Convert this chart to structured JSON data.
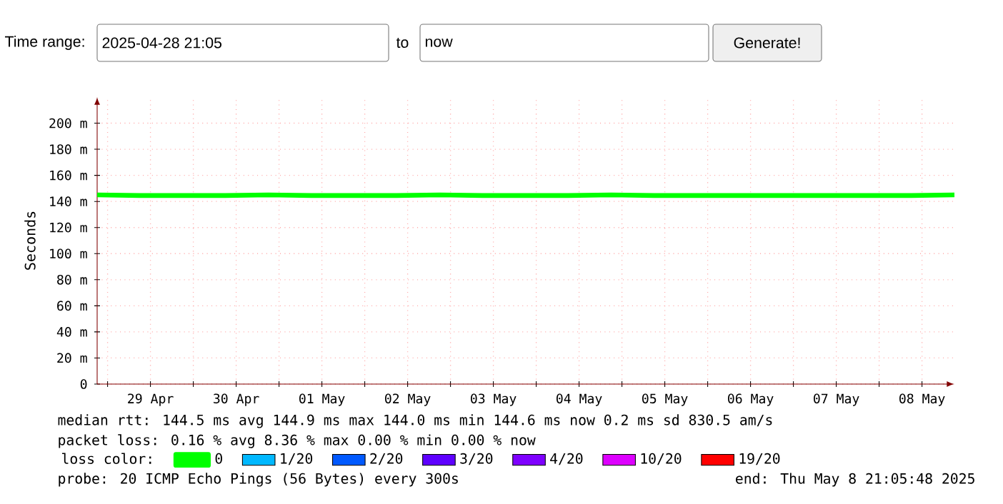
{
  "chart_data": {
    "type": "line",
    "ylabel": "Seconds",
    "legend_title": "loss color:",
    "legend": "bottom",
    "grid": true,
    "marker": "none",
    "line_style": "solid",
    "xlim": [
      "2025-04-28T21:05",
      "2025-05-08T21:05"
    ],
    "xticks": [
      {
        "value": "2025-04-29T00:00",
        "label": null
      },
      {
        "value": "2025-04-29T12:00",
        "label": "29 Apr"
      },
      {
        "value": "2025-04-30T00:00",
        "label": null
      },
      {
        "value": "2025-04-30T12:00",
        "label": "30 Apr"
      },
      {
        "value": "2025-05-01T00:00",
        "label": null
      },
      {
        "value": "2025-05-01T12:00",
        "label": "01 May"
      },
      {
        "value": "2025-05-02T00:00",
        "label": null
      },
      {
        "value": "2025-05-02T12:00",
        "label": "02 May"
      },
      {
        "value": "2025-05-03T00:00",
        "label": null
      },
      {
        "value": "2025-05-03T12:00",
        "label": "03 May"
      },
      {
        "value": "2025-05-04T00:00",
        "label": null
      },
      {
        "value": "2025-05-04T12:00",
        "label": "04 May"
      },
      {
        "value": "2025-05-05T00:00",
        "label": null
      },
      {
        "value": "2025-05-05T12:00",
        "label": "05 May"
      },
      {
        "value": "2025-05-06T00:00",
        "label": null
      },
      {
        "value": "2025-05-06T12:00",
        "label": "06 May"
      },
      {
        "value": "2025-05-07T00:00",
        "label": null
      },
      {
        "value": "2025-05-07T12:00",
        "label": "07 May"
      },
      {
        "value": "2025-05-08T00:00",
        "label": null
      },
      {
        "value": "2025-05-08T12:00",
        "label": "08 May"
      }
    ],
    "ylim": [
      0,
      220
    ],
    "yticks": [
      0,
      {
        "value": 20,
        "label": "20 m"
      },
      {
        "value": 40,
        "label": "40 m"
      },
      {
        "value": 60,
        "label": "60 m"
      },
      {
        "value": 80,
        "label": "80 m"
      },
      {
        "value": 100,
        "label": "100 m"
      },
      {
        "value": 120,
        "label": "120 m"
      },
      {
        "value": 140,
        "label": "140 m"
      },
      {
        "value": 160,
        "label": "160 m"
      },
      {
        "value": 180,
        "label": "180 m"
      },
      {
        "value": 200,
        "label": "200 m"
      }
    ],
    "x": [
      "2025-04-28T21:05",
      "2025-04-29T09:00",
      "2025-04-29T21:00",
      "2025-04-30T09:00",
      "2025-04-30T21:00",
      "2025-05-01T09:00",
      "2025-05-01T21:00",
      "2025-05-02T09:00",
      "2025-05-02T21:00",
      "2025-05-03T09:00",
      "2025-05-03T21:00",
      "2025-05-04T09:00",
      "2025-05-04T21:00",
      "2025-05-05T09:00",
      "2025-05-05T21:00",
      "2025-05-06T09:00",
      "2025-05-06T21:00",
      "2025-05-07T09:00",
      "2025-05-07T21:00",
      "2025-05-08T09:00",
      "2025-05-08T21:05"
    ],
    "series": [
      {
        "name": "0",
        "color": "#00ff00",
        "values": [
          145,
          144.5,
          144.5,
          144.5,
          145,
          144.5,
          144.5,
          144.5,
          145,
          144.5,
          144.5,
          144.5,
          145,
          144.5,
          144.5,
          144.5,
          144.5,
          144.5,
          144.5,
          144.5,
          145
        ]
      },
      {
        "name": "1/20",
        "color": "#00b8ff",
        "values": [
          null,
          null,
          null,
          null,
          null,
          null,
          null,
          null,
          null,
          null,
          null,
          null,
          null,
          null,
          null,
          null,
          null,
          null,
          null,
          null,
          null
        ]
      },
      {
        "name": "2/20",
        "color": "#0059ff",
        "values": [
          null,
          null,
          null,
          null,
          null,
          null,
          null,
          null,
          null,
          null,
          null,
          null,
          null,
          null,
          null,
          null,
          null,
          null,
          null,
          null,
          null
        ]
      },
      {
        "name": "3/20",
        "color": "#5e00ff",
        "values": [
          null,
          null,
          null,
          null,
          null,
          null,
          null,
          null,
          null,
          null,
          null,
          null,
          null,
          null,
          null,
          null,
          null,
          null,
          null,
          null,
          null
        ]
      },
      {
        "name": "4/20",
        "color": "#7e00ff",
        "values": [
          null,
          null,
          null,
          null,
          null,
          null,
          null,
          null,
          null,
          null,
          null,
          null,
          null,
          null,
          null,
          null,
          null,
          null,
          null,
          null,
          null
        ]
      },
      {
        "name": "10/20",
        "color": "#dd00ff",
        "values": [
          null,
          null,
          null,
          null,
          null,
          null,
          null,
          null,
          null,
          null,
          null,
          null,
          null,
          null,
          null,
          null,
          null,
          null,
          null,
          null,
          null
        ]
      },
      {
        "name": "19/20",
        "color": "#ff0000",
        "values": [
          null,
          null,
          null,
          null,
          null,
          null,
          null,
          null,
          null,
          null,
          null,
          null,
          null,
          null,
          null,
          null,
          null,
          null,
          null,
          null,
          null
        ]
      }
    ],
    "annotations": [
      "Time range:",
      "2025-04-28 21:05",
      "to",
      "now",
      "Generate!",
      "median rtt:  144.5 ms avg  144.9 ms max  144.0 ms min  144.6 ms now  0.2 ms sd  830.5   am/s",
      "packet loss: 0.16 % avg  8.36 % max  0.00 % min  0.00 % now",
      "probe:       20 ICMP Echo Pings (56 Bytes) every 300s",
      "end: Thu May  8 21:05:48 2025"
    ]
  }
}
